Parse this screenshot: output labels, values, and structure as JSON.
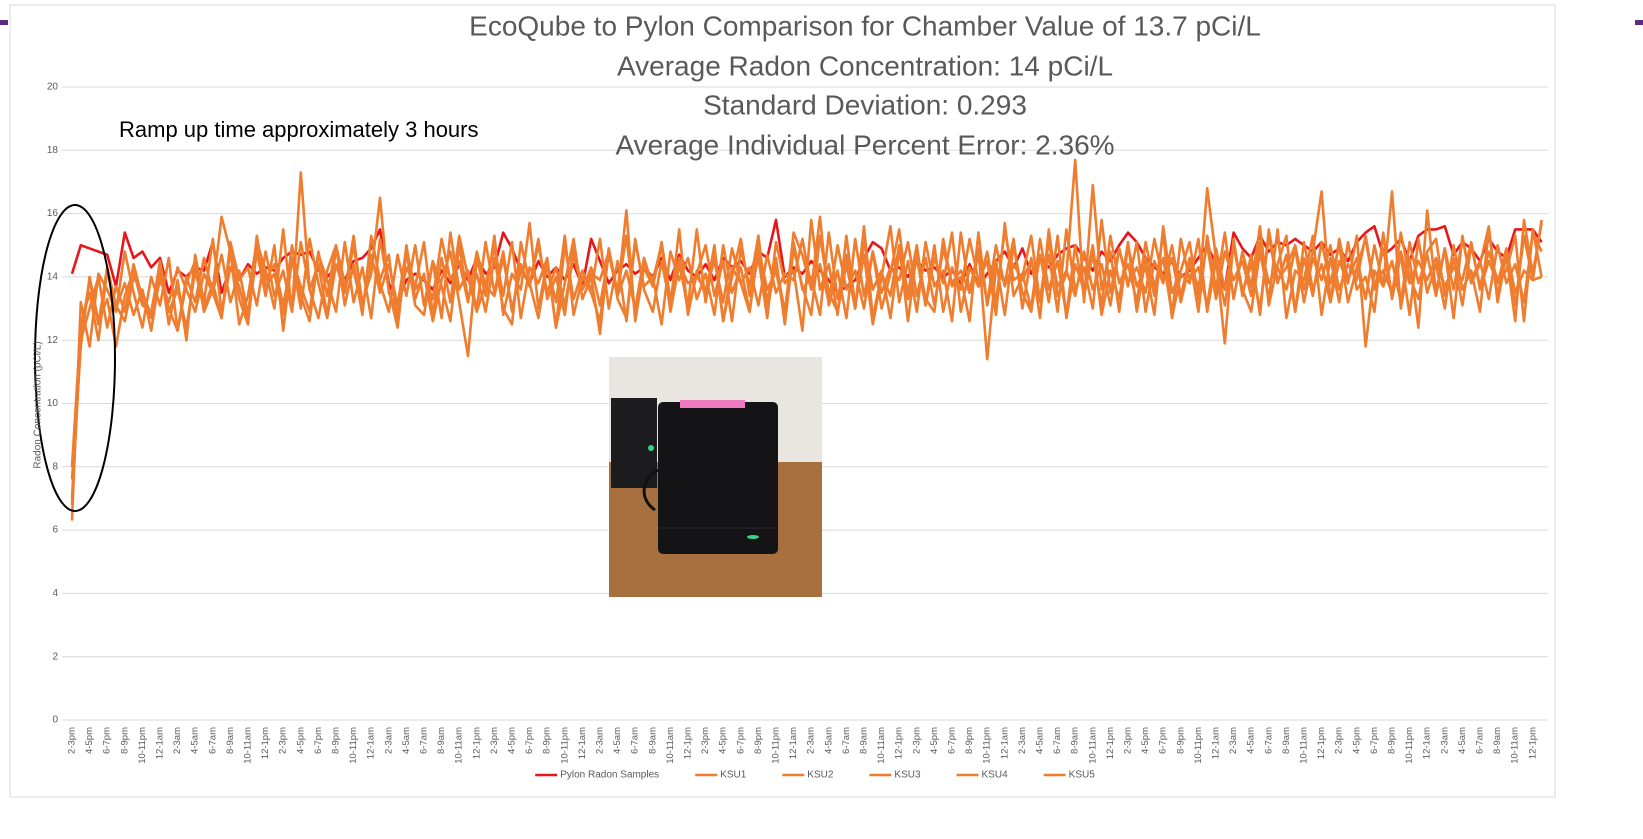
{
  "chart_data": {
    "type": "line",
    "title": "EcoQube to Pylon Comparison for Chamber Value of 13.7 pCi/L",
    "subtitles": [
      "Average Radon Concentration: 14 pCi/L",
      "Standard Deviation: 0.293",
      "Average Individual Percent Error: 2.36%"
    ],
    "annotation": "Ramp up time approximately 3 hours",
    "y_label": "Radon Concentration (pCi/L)",
    "ylim": [
      0,
      20
    ],
    "yticks": [
      0,
      2,
      4,
      6,
      8,
      10,
      12,
      14,
      16,
      18,
      20
    ],
    "grid": true,
    "legend": "bottom",
    "categories": [
      "2-3pm",
      null,
      "4-5pm",
      null,
      "6-7pm",
      null,
      "8-9pm",
      null,
      "10-11pm",
      null,
      "12-1am",
      null,
      "2-3am",
      null,
      "4-5am",
      null,
      "6-7am",
      null,
      "8-9am",
      null,
      "10-11am",
      null,
      "12-1pm",
      null,
      "2-3pm",
      null,
      "4-5pm",
      null,
      "6-7pm",
      null,
      "8-9pm",
      null,
      "10-11pm",
      null,
      "12-1am",
      null,
      "2-3am",
      null,
      "4-5am",
      null,
      "6-7am",
      null,
      "8-9am",
      null,
      "10-11am",
      null,
      "12-1pm",
      null,
      "2-3pm",
      null,
      "4-5pm",
      null,
      "6-7pm",
      null,
      "8-9pm",
      null,
      "10-11pm",
      null,
      "12-1am",
      null,
      "2-3am",
      null,
      "4-5am",
      null,
      "6-7am",
      null,
      "8-9am",
      null,
      "10-11am",
      null,
      "12-1pm",
      null,
      "2-3pm",
      null,
      "4-5pm",
      null,
      "6-7pm",
      null,
      "8-9pm",
      null,
      "10-11pm",
      null,
      "12-1am",
      null,
      "2-3am",
      null,
      "4-5am",
      null,
      "6-7am",
      null,
      "8-9am",
      null,
      "10-11am",
      null,
      "12-1pm",
      null,
      "2-3pm",
      null,
      "4-5pm",
      null,
      "6-7pm",
      null,
      "8-9pm",
      null,
      "10-11pm",
      null,
      "12-1am",
      null,
      "2-3am",
      null,
      "4-5am",
      null,
      "6-7am",
      null,
      "8-9am",
      null,
      "10-11am",
      null,
      "12-1pm",
      null,
      "2-3pm",
      null,
      "4-5pm",
      null,
      "6-7pm",
      null,
      "8-9pm",
      null,
      "10-11pm",
      null,
      "12-1am",
      null,
      "2-3am",
      null,
      "4-5am",
      null,
      "6-7am",
      null,
      "8-9am",
      null,
      "10-11am",
      null,
      "12-1pm",
      null,
      "2-3pm",
      null,
      "4-5pm",
      null,
      "6-7pm",
      null,
      "8-9pm",
      null,
      "10-11pm",
      null,
      "12-1am",
      null,
      "2-3am",
      null,
      "4-5am",
      null,
      "6-7am",
      null,
      "8-9am",
      null,
      "10-11am",
      null,
      "12-1pm",
      null
    ],
    "series": [
      {
        "name": "Pylon Radon Samples",
        "color": "#e8161b",
        "values": [
          14.1,
          15.0,
          14.9,
          14.8,
          14.7,
          13.7,
          15.4,
          14.6,
          14.8,
          14.3,
          14.6,
          13.5,
          14.2,
          14.0,
          14.3,
          14.2,
          15.1,
          13.5,
          14.3,
          13.9,
          14.4,
          14.1,
          14.3,
          14.2,
          14.6,
          14.8,
          14.7,
          14.8,
          14.2,
          14.0,
          14.3,
          13.9,
          14.5,
          14.6,
          14.9,
          15.5,
          13.8,
          13.2,
          13.9,
          14.1,
          13.9,
          13.6,
          14.2,
          13.8,
          14.4,
          13.9,
          14.6,
          14.1,
          14.3,
          15.4,
          14.9,
          14.2,
          13.8,
          14.5,
          14.0,
          14.3,
          13.9,
          14.4,
          13.7,
          15.2,
          14.5,
          13.8,
          14.2,
          14.4,
          14.1,
          14.3,
          14.0,
          14.6,
          13.9,
          14.7,
          14.2,
          14.0,
          14.4,
          13.9,
          14.6,
          14.3,
          14.5,
          14.1,
          14.8,
          14.6,
          15.8,
          14.0,
          14.3,
          14.1,
          14.5,
          14.2,
          13.9,
          13.5,
          13.7,
          13.9,
          14.6,
          15.1,
          14.9,
          14.2,
          14.3,
          14.0,
          14.5,
          14.2,
          14.3,
          14.0,
          14.2,
          13.8,
          14.4,
          13.7,
          14.1,
          14.5,
          14.8,
          14.3,
          14.9,
          14.1,
          14.6,
          14.3,
          14.7,
          14.9,
          15.0,
          14.6,
          14.2,
          14.8,
          14.5,
          15.0,
          15.4,
          15.1,
          14.6,
          14.3,
          14.1,
          14.5,
          14.0,
          14.2,
          14.6,
          15.0,
          14.4,
          13.6,
          15.4,
          14.9,
          14.6,
          15.3,
          14.8,
          15.1,
          15.0,
          15.2,
          15.0,
          14.8,
          15.1,
          14.7,
          14.9,
          14.5,
          15.1,
          15.4,
          15.6,
          14.7,
          14.9,
          15.2,
          14.5,
          15.3,
          15.5,
          15.5,
          15.6,
          14.7,
          15.1,
          14.9,
          14.5,
          15.2,
          14.8,
          14.6,
          15.5,
          15.5,
          15.5,
          15.1
        ]
      },
      {
        "name": "KSU1",
        "color": "#ef7d2f",
        "values": [
          6.3,
          13.2,
          11.8,
          14.1,
          13.6,
          12.9,
          14.8,
          13.5,
          12.4,
          14.0,
          13.1,
          14.6,
          12.3,
          13.8,
          14.5,
          12.9,
          13.6,
          15.9,
          14.8,
          12.5,
          13.4,
          15.1,
          14.2,
          13.0,
          15.5,
          12.9,
          17.3,
          13.6,
          12.7,
          14.2,
          15.0,
          13.1,
          14.4,
          12.8,
          15.3,
          13.9,
          14.7,
          12.5,
          15.0,
          13.3,
          14.1,
          12.6,
          13.9,
          14.8,
          13.2,
          11.5,
          14.6,
          13.4,
          15.3,
          12.8,
          14.1,
          13.6,
          15.7,
          13.0,
          14.5,
          12.4,
          13.8,
          15.2,
          13.3,
          14.0,
          12.2,
          14.9,
          13.5,
          16.1,
          12.6,
          14.3,
          13.7,
          15.0,
          12.9,
          14.4,
          13.1,
          15.5,
          13.2,
          14.7,
          12.6,
          14.0,
          15.2,
          13.4,
          14.6,
          12.7,
          15.1,
          13.8,
          14.2,
          12.3,
          15.8,
          13.6,
          14.4,
          12.8,
          15.3,
          13.1,
          14.7,
          12.5,
          14.0,
          15.6,
          13.2,
          14.5,
          12.9,
          15.1,
          13.7,
          14.2,
          12.6,
          15.4,
          13.5,
          14.9,
          11.4,
          14.3,
          13.8,
          15.2,
          13.0,
          14.6,
          12.7,
          15.5,
          13.4,
          14.1,
          17.7,
          13.2,
          16.9,
          13.6,
          14.8,
          12.9,
          15.0,
          13.7,
          14.3,
          12.8,
          15.6,
          13.5,
          14.2,
          15.1,
          13.3,
          16.8,
          14.6,
          11.9,
          15.2,
          13.4,
          14.7,
          12.8,
          15.5,
          13.9,
          14.3,
          15.0,
          13.6,
          14.8,
          16.7,
          13.2,
          14.5,
          13.8,
          15.3,
          11.8,
          14.2,
          13.7,
          16.7,
          13.0,
          14.6,
          12.4,
          16.1,
          13.5,
          14.9,
          12.7,
          15.3,
          13.8,
          14.4,
          15.6,
          13.2,
          14.7,
          12.6,
          15.8,
          14.1,
          15.7
        ]
      },
      {
        "name": "KSU2",
        "color": "#ef7d2f",
        "values": [
          7.6,
          11.8,
          14.0,
          12.6,
          13.3,
          11.8,
          13.4,
          14.2,
          13.1,
          12.9,
          14.4,
          12.5,
          13.9,
          12.0,
          14.7,
          13.2,
          15.2,
          12.9,
          14.3,
          13.7,
          12.6,
          14.8,
          13.4,
          15.0,
          12.3,
          14.6,
          13.0,
          15.2,
          13.8,
          12.7,
          14.4,
          13.5,
          15.0,
          13.2,
          14.1,
          16.5,
          13.5,
          12.9,
          14.3,
          13.7,
          15.1,
          12.8,
          14.6,
          13.2,
          15.3,
          14.0,
          12.9,
          13.8,
          14.9,
          13.4,
          15.1,
          12.7,
          14.3,
          13.8,
          14.6,
          12.4,
          15.0,
          13.3,
          14.2,
          13.6,
          15.2,
          13.0,
          14.5,
          12.6,
          15.1,
          13.7,
          14.0,
          12.5,
          14.8,
          13.9,
          14.6,
          13.3,
          14.1,
          12.8,
          15.0,
          13.5,
          14.3,
          12.9,
          14.9,
          13.6,
          14.2,
          12.8,
          15.4,
          14.7,
          13.6,
          15.9,
          13.1,
          14.2,
          12.7,
          15.2,
          13.4,
          14.8,
          13.0,
          14.1,
          15.5,
          13.3,
          14.6,
          13.1,
          15.0,
          12.9,
          14.3,
          13.6,
          15.2,
          13.9,
          14.5,
          12.8,
          15.7,
          13.4,
          14.0,
          15.3,
          13.2,
          14.7,
          12.9,
          15.5,
          13.6,
          14.3,
          13.0,
          15.8,
          13.5,
          14.9,
          13.7,
          15.1,
          12.9,
          14.5,
          13.8,
          15.0,
          13.4,
          14.6,
          12.9,
          15.3,
          13.6,
          15.4,
          13.3,
          14.8,
          13.7,
          15.6,
          13.1,
          14.4,
          15.3,
          12.9,
          14.6,
          13.4,
          15.1,
          13.8,
          15.0,
          13.2,
          14.3,
          15.2,
          13.6,
          14.9,
          13.4,
          15.4,
          14.0,
          13.3,
          14.8,
          15.2,
          13.4,
          14.6,
          13.1,
          15.0,
          13.7,
          14.8,
          13.9,
          14.2,
          15.3,
          12.6,
          15.5,
          14.0
        ]
      },
      {
        "name": "KSU3",
        "color": "#ef7d2f",
        "values": [
          8.0,
          12.5,
          13.5,
          12.0,
          14.2,
          13.0,
          13.8,
          12.8,
          13.6,
          12.3,
          14.1,
          13.0,
          12.3,
          14.0,
          13.2,
          14.6,
          13.5,
          12.7,
          15.1,
          13.9,
          14.3,
          13.1,
          14.8,
          13.4,
          14.2,
          12.9,
          15.1,
          13.6,
          14.4,
          12.8,
          14.9,
          13.5,
          15.3,
          13.0,
          14.6,
          13.8,
          12.9,
          14.7,
          13.4,
          15.0,
          13.1,
          14.5,
          12.7,
          15.4,
          13.6,
          14.2,
          13.0,
          15.1,
          13.5,
          14.8,
          12.9,
          14.4,
          13.7,
          15.2,
          13.3,
          14.0,
          12.8,
          14.9,
          13.6,
          14.3,
          13.1,
          14.7,
          13.5,
          15.3,
          12.8,
          14.4,
          13.9,
          15.0,
          13.2,
          14.6,
          12.9,
          14.1,
          15.0,
          13.4,
          14.5,
          12.6,
          14.9,
          13.7,
          15.3,
          13.0,
          14.4,
          12.9,
          15.1,
          13.6,
          14.0,
          12.8,
          15.4,
          13.3,
          14.7,
          13.0,
          15.1,
          13.6,
          14.2,
          12.7,
          14.8,
          13.5,
          15.0,
          13.1,
          14.6,
          13.8,
          15.4,
          12.9,
          14.3,
          13.7,
          14.8,
          13.2,
          15.5,
          13.9,
          14.1,
          13.0,
          15.2,
          13.6,
          14.5,
          12.8,
          15.0,
          13.4,
          14.7,
          13.1,
          15.3,
          13.8,
          14.4,
          13.2,
          15.1,
          13.7,
          14.6,
          12.8,
          15.2,
          13.9,
          14.3,
          13.1,
          14.9,
          13.6,
          15.0,
          13.5,
          14.4,
          13.0,
          15.3,
          13.8,
          14.7,
          12.9,
          15.1,
          13.6,
          14.4,
          13.2,
          15.2,
          13.9,
          14.6,
          13.3,
          15.0,
          13.7,
          14.5,
          13.2,
          15.1,
          13.8,
          14.7,
          13.4,
          14.9,
          13.6,
          15.2,
          13.9,
          14.5,
          13.3,
          15.0,
          13.8,
          14.4,
          13.2,
          15.4,
          14.8
        ]
      },
      {
        "name": "KSU4",
        "color": "#ef7d2f",
        "values": [
          7.0,
          12.0,
          13.0,
          14.0,
          12.4,
          13.7,
          12.9,
          14.4,
          13.3,
          12.7,
          13.9,
          13.2,
          14.3,
          13.6,
          12.9,
          14.1,
          13.5,
          14.7,
          13.2,
          14.2,
          12.8,
          15.0,
          13.9,
          14.4,
          13.1,
          14.6,
          13.7,
          12.9,
          14.8,
          13.4,
          15.0,
          13.8,
          14.2,
          13.0,
          14.7,
          13.5,
          14.4,
          13.1,
          14.9,
          13.6,
          14.0,
          13.3,
          15.2,
          13.9,
          14.5,
          13.2,
          14.8,
          13.7,
          13.4,
          14.6,
          13.0,
          14.2,
          13.8,
          15.0,
          13.5,
          14.3,
          13.1,
          14.7,
          13.6,
          14.1,
          13.9,
          14.8,
          13.4,
          14.2,
          13.0,
          14.6,
          13.7,
          15.1,
          13.3,
          14.4,
          13.8,
          14.0,
          13.6,
          14.5,
          13.2,
          14.9,
          13.8,
          14.3,
          13.1,
          14.7,
          13.5,
          14.1,
          13.9,
          15.2,
          13.7,
          14.4,
          13.2,
          15.0,
          13.6,
          14.2,
          13.0,
          14.8,
          13.5,
          14.3,
          13.9,
          15.1,
          13.4,
          14.6,
          13.1,
          14.9,
          13.8,
          14.2,
          13.5,
          14.7,
          13.2,
          15.0,
          13.7,
          14.4,
          13.9,
          14.5,
          13.3,
          15.1,
          13.7,
          14.2,
          13.4,
          14.8,
          13.6,
          14.4,
          13.1,
          14.9,
          13.8,
          14.3,
          13.5,
          15.2,
          13.9,
          14.6,
          13.2,
          14.4,
          13.7,
          15.0,
          13.3,
          14.8,
          13.9,
          14.5,
          13.4,
          15.1,
          13.8,
          14.3,
          13.6,
          14.9,
          13.2,
          14.6,
          13.9,
          15.0,
          13.6,
          14.4,
          13.9,
          15.3,
          13.7,
          14.2,
          13.5,
          14.8,
          13.8,
          14.5,
          13.9,
          14.6,
          13.7,
          14.3,
          13.9,
          15.1,
          13.6,
          14.5,
          13.8,
          14.9,
          13.5,
          14.2,
          13.9,
          15.8
        ]
      },
      {
        "name": "KSU5",
        "color": "#ef7d2f",
        "values": [
          6.8,
          12.2,
          13.9,
          12.5,
          14.3,
          13.1,
          12.6,
          14.0,
          13.5,
          12.8,
          14.5,
          12.9,
          13.6,
          12.4,
          14.2,
          13.0,
          13.8,
          12.7,
          14.9,
          13.3,
          12.5,
          15.3,
          13.7,
          14.1,
          12.8,
          15.0,
          13.4,
          12.6,
          14.7,
          13.9,
          12.9,
          15.1,
          13.2,
          14.3,
          12.7,
          15.2,
          13.6,
          12.4,
          14.8,
          13.1,
          12.8,
          14.5,
          13.7,
          12.6,
          15.0,
          13.3,
          14.1,
          12.9,
          14.6,
          13.0,
          12.5,
          15.1,
          13.8,
          12.7,
          14.4,
          13.2,
          15.3,
          12.8,
          14.0,
          13.5,
          12.6,
          14.9,
          13.3,
          12.7,
          15.2,
          13.6,
          12.9,
          14.5,
          13.1,
          15.5,
          12.8,
          14.2,
          13.4,
          15.0,
          12.6,
          14.3,
          13.8,
          12.9,
          15.1,
          13.2,
          14.6,
          12.5,
          14.9,
          13.7,
          12.8,
          15.3,
          13.5,
          12.9,
          14.4,
          13.0,
          15.6,
          12.7,
          14.1,
          13.4,
          15.0,
          12.6,
          14.8,
          13.3,
          12.9,
          15.2,
          13.7,
          14.0,
          12.6,
          15.4,
          13.1,
          14.5,
          12.8,
          15.0,
          13.5,
          12.9,
          14.7,
          13.2,
          15.3,
          12.7,
          14.4,
          13.6,
          15.0,
          12.8,
          14.2,
          13.3,
          15.1,
          12.9,
          14.6,
          13.4,
          15.4,
          12.7,
          14.1,
          13.8,
          15.2,
          12.9,
          14.5,
          13.1,
          15.0,
          13.6,
          12.9,
          14.8,
          13.3,
          15.5,
          12.7,
          14.2,
          13.9,
          15.3,
          12.8,
          14.6,
          13.2,
          15.1,
          13.6,
          14.0,
          12.9,
          15.4,
          13.3,
          14.7,
          12.8,
          15.2,
          13.5,
          14.4,
          13.0,
          15.0,
          13.6,
          14.2,
          12.9,
          15.5,
          13.4,
          14.8,
          13.1,
          15.3,
          13.9,
          14.0
        ]
      }
    ]
  }
}
